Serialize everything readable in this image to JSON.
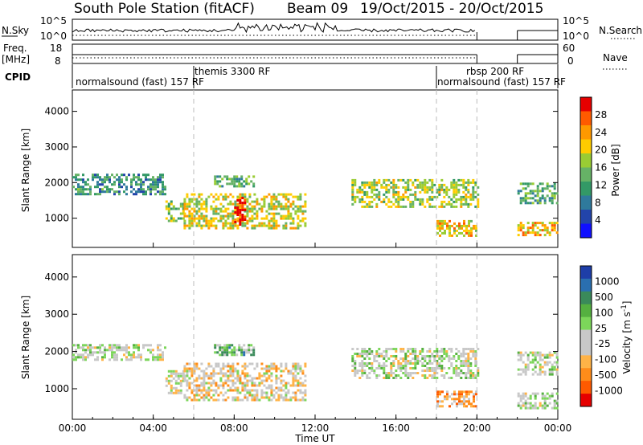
{
  "header": {
    "station": "South Pole Station (fitACF)",
    "beam": "Beam 09",
    "dates": "19/Oct/2015 - 20/Oct/2015"
  },
  "strip_panels": {
    "nsky_label": "N.Sky",
    "nsky_ticks": [
      "10^5",
      "10^0"
    ],
    "nsearch_label": "N.Search",
    "nsearch_ticks": [
      "10^5",
      "10^0"
    ],
    "freq_label_top": "Freq.",
    "freq_label_unit": "[MHz]",
    "freq_ticks": [
      "18",
      "8"
    ],
    "nave_label": "Nave",
    "nave_ticks": [
      "60",
      "0"
    ],
    "cpid_label": "CPID",
    "cpid_labels": [
      {
        "text": "normalsound (fast) 157 RF",
        "start_hour": 0
      },
      {
        "text": "themis 3300 RF",
        "start_hour": 6
      },
      {
        "text": "rbsp 200 RF",
        "start_hour": 18
      },
      {
        "text": "normalsound (fast) 157 RF",
        "start_hour": 18
      }
    ],
    "data_gap_hours": [
      20,
      22
    ]
  },
  "power_panel": {
    "ylabel": "Slant Range [km]",
    "colorbar_title": "Power [dB]",
    "colorbar_ticks": [
      "28",
      "24",
      "20",
      "16",
      "12",
      "8",
      "4"
    ],
    "colorbar_colors": [
      "#e60000",
      "#ff5a00",
      "#ff9900",
      "#ffcc00",
      "#99cc33",
      "#66b266",
      "#339966",
      "#2f7a9c",
      "#2244aa",
      "#1010ff"
    ]
  },
  "velocity_panel": {
    "ylabel": "Slant Range [km]",
    "colorbar_title": "Velocity [m s",
    "colorbar_title_sup": "-1",
    "colorbar_title_end": "]",
    "colorbar_ticks": [
      "1000",
      "500",
      "100",
      "25",
      "-25",
      "-100",
      "-500",
      "-1000"
    ],
    "colorbar_colors": [
      "#1e3ea8",
      "#2a6fb0",
      "#3a8a5a",
      "#55b040",
      "#7cd65a",
      "#c8c8c8",
      "#c8c8c8",
      "#ffb347",
      "#ff8c1a",
      "#ff5a00",
      "#e60000"
    ]
  },
  "xaxis": {
    "label": "Time UT",
    "ticks": [
      "00:00",
      "04:00",
      "08:00",
      "12:00",
      "16:00",
      "20:00",
      "00:00"
    ]
  },
  "yaxis_ticks": [
    "1000",
    "2000",
    "3000",
    "4000"
  ],
  "chart_data": [
    {
      "type": "heatmap",
      "title": "South Pole Station (fitACF) Beam 09 19/Oct/2015 - 20/Oct/2015",
      "quantity": "Power [dB]",
      "xlabel": "Time UT",
      "ylabel": "Slant Range [km]",
      "xlim_hours": [
        0,
        24
      ],
      "ylim_km": [
        180,
        4600
      ],
      "clim": [
        0,
        30
      ],
      "echo_regions": [
        {
          "t_start": 0.0,
          "t_end": 4.6,
          "range_low": 1700,
          "range_high": 2250,
          "typical_value": 10
        },
        {
          "t_start": 4.6,
          "t_end": 5.5,
          "range_low": 900,
          "range_high": 1500,
          "typical_value": 14
        },
        {
          "t_start": 5.5,
          "t_end": 11.5,
          "range_low": 700,
          "range_high": 1700,
          "typical_value": 18
        },
        {
          "t_start": 8.0,
          "t_end": 8.5,
          "range_low": 800,
          "range_high": 1600,
          "typical_value": 28
        },
        {
          "t_start": 7.0,
          "t_end": 9.0,
          "range_low": 1900,
          "range_high": 2200,
          "typical_value": 12
        },
        {
          "t_start": 13.8,
          "t_end": 20.0,
          "range_low": 1300,
          "range_high": 2100,
          "typical_value": 16
        },
        {
          "t_start": 18.0,
          "t_end": 20.0,
          "range_low": 500,
          "range_high": 950,
          "typical_value": 20
        },
        {
          "t_start": 22.0,
          "t_end": 24.0,
          "range_low": 1400,
          "range_high": 2000,
          "typical_value": 12
        },
        {
          "t_start": 22.0,
          "t_end": 24.0,
          "range_low": 500,
          "range_high": 900,
          "typical_value": 20
        }
      ]
    },
    {
      "type": "heatmap",
      "quantity": "Velocity [m s-1]",
      "xlabel": "Time UT",
      "ylabel": "Slant Range [km]",
      "xlim_hours": [
        0,
        24
      ],
      "ylim_km": [
        180,
        4600
      ],
      "clim": [
        -1000,
        1000
      ],
      "echo_regions": [
        {
          "t_start": 0.0,
          "t_end": 4.6,
          "range_low": 1750,
          "range_high": 2200,
          "typical_value": 0
        },
        {
          "t_start": 4.6,
          "t_end": 5.5,
          "range_low": 900,
          "range_high": 1500,
          "typical_value": -100
        },
        {
          "t_start": 5.5,
          "t_end": 11.5,
          "range_low": 700,
          "range_high": 1700,
          "typical_value": -200
        },
        {
          "t_start": 7.0,
          "t_end": 9.0,
          "range_low": 1900,
          "range_high": 2200,
          "typical_value": 300
        },
        {
          "t_start": 13.8,
          "t_end": 20.0,
          "range_low": 1300,
          "range_high": 2100,
          "typical_value": 0
        },
        {
          "t_start": 18.0,
          "t_end": 20.0,
          "range_low": 500,
          "range_high": 950,
          "typical_value": -400
        },
        {
          "t_start": 22.0,
          "t_end": 24.0,
          "range_low": 1400,
          "range_high": 2000,
          "typical_value": 0
        },
        {
          "t_start": 22.0,
          "t_end": 24.0,
          "range_low": 500,
          "range_high": 900,
          "typical_value": 50
        }
      ]
    }
  ]
}
